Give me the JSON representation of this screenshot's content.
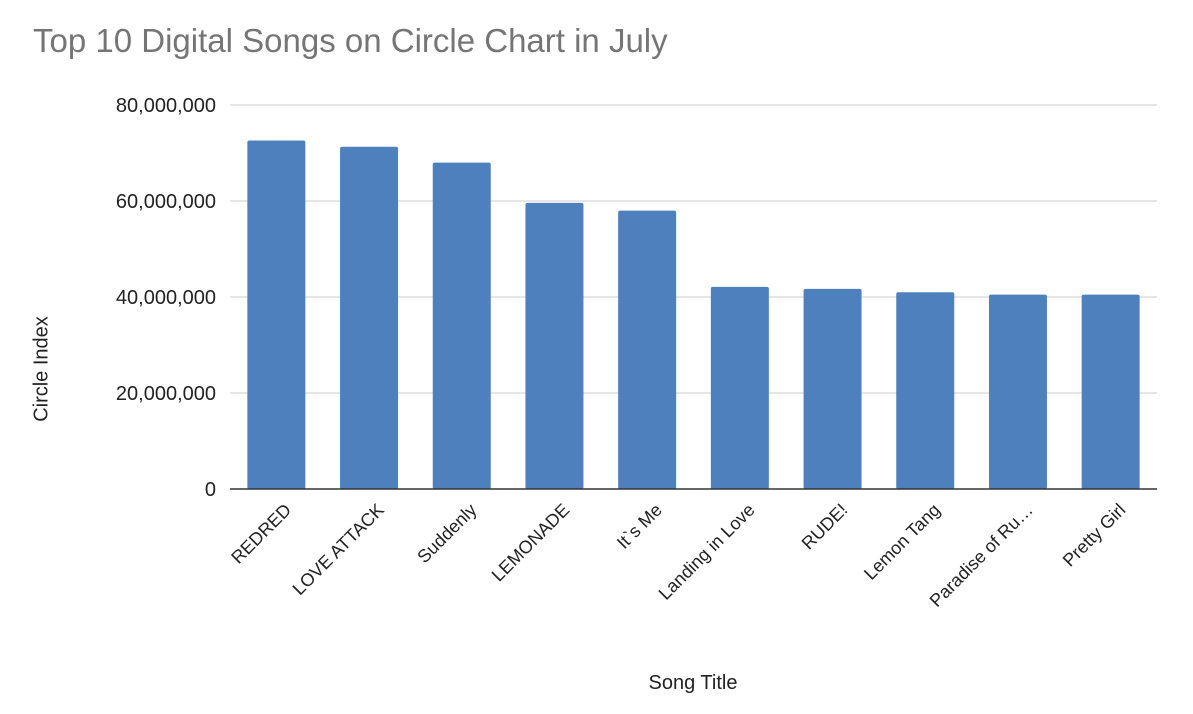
{
  "chart_data": {
    "type": "bar",
    "title": "Top 10 Digital Songs on Circle Chart in July",
    "xlabel": "Song Title",
    "ylabel": "Circle Index",
    "categories": [
      "REDRED",
      "LOVE ATTACK",
      "Suddenly",
      "LEMONADE",
      "It`s Me",
      "Landing in Love",
      "RUDE!",
      "Lemon Tang",
      "Paradise of Ru…",
      "Pretty Girl"
    ],
    "values": [
      72600000,
      71300000,
      68000000,
      59600000,
      58000000,
      42100000,
      41700000,
      41000000,
      40500000,
      40500000
    ],
    "ylim": [
      0,
      80000000
    ],
    "yticks": [
      "0",
      "20,000,000",
      "40,000,000",
      "60,000,000",
      "80,000,000"
    ],
    "ytick_values": [
      0,
      20000000,
      40000000,
      60000000,
      80000000
    ],
    "grid": true,
    "legend": "none",
    "bar_color": "#4e80bd",
    "grid_color": "#cccccc",
    "axis_color": "#333333"
  }
}
